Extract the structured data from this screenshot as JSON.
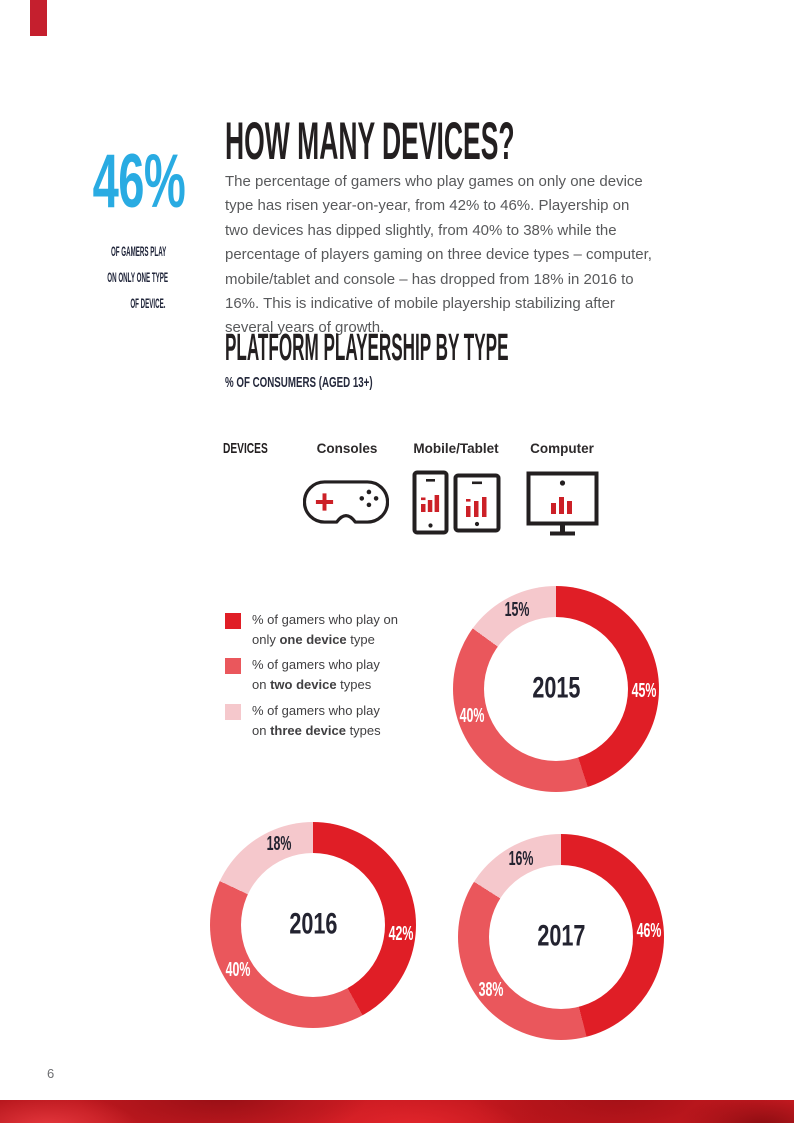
{
  "page": {
    "number": "6"
  },
  "colors": {
    "accent_red": "#e01e26",
    "accent_red_mid": "#ea575c",
    "accent_pink": "#f5c8cc",
    "accent_blue": "#29abe2",
    "ink": "#231f20",
    "tab_red": "#c51f2e",
    "icon_red": "#cc2027"
  },
  "sidebar_stat": {
    "value": "46%",
    "caption_lines": [
      "OF GAMERS PLAY",
      "ON ONLY ONE TYPE",
      "OF DEVICE."
    ]
  },
  "header": {
    "title": "HOW MANY DEVICES?",
    "body": "The percentage of gamers who play games on only one device type has risen year-on-year, from 42% to 46%. Playership on two devices has dipped slightly, from 40% to 38% while the percentage of players gaming on three device types – computer, mobile/tablet and console – has dropped from 18% in 2016 to 16%. This is indicative of mobile playership stabilizing after several years of growth."
  },
  "section": {
    "title": "PLATFORM PLAYERSHIP BY TYPE",
    "subtitle": "% OF CONSUMERS (AGED 13+)"
  },
  "devices": {
    "label": "DEVICES",
    "items": [
      {
        "name": "Consoles",
        "icon": "gamepad-icon"
      },
      {
        "name": "Mobile/Tablet",
        "icon": "mobile-tablet-icon"
      },
      {
        "name": "Computer",
        "icon": "computer-monitor-icon"
      }
    ]
  },
  "legend": [
    {
      "color": "#e01e26",
      "line1": "% of gamers who play on",
      "line2_pre": "only ",
      "line2_bold": "one device",
      "line2_post": " type"
    },
    {
      "color": "#ea575c",
      "line1": "% of gamers who play",
      "line2_pre": "on ",
      "line2_bold": "two device",
      "line2_post": " types"
    },
    {
      "color": "#f5c8cc",
      "line1": "% of gamers who play",
      "line2_pre": "on ",
      "line2_bold": "three device",
      "line2_post": " types"
    }
  ],
  "chart_data": {
    "type": "pie",
    "variant": "donut",
    "title": "PLATFORM PLAYERSHIP BY TYPE",
    "subtitle": "% OF CONSUMERS (AGED 13+)",
    "unit": "%",
    "categories": [
      "% of gamers who play on only one device type",
      "% of gamers who play on two device types",
      "% of gamers who play on three device types"
    ],
    "colors": [
      "#e01e26",
      "#ea575c",
      "#f5c8cc"
    ],
    "label_colors": [
      "#ffffff",
      "#ffffff",
      "#232330"
    ],
    "start_angle_deg": 0,
    "direction": "clockwise",
    "charts": [
      {
        "year": "2015",
        "values": [
          45,
          40,
          15
        ],
        "label_angles": [
          91,
          252,
          334
        ]
      },
      {
        "year": "2016",
        "values": [
          42,
          40,
          18
        ],
        "label_angles": [
          96,
          239,
          337
        ]
      },
      {
        "year": "2017",
        "values": [
          46,
          38,
          16
        ],
        "label_angles": [
          86,
          233,
          333
        ]
      }
    ]
  }
}
